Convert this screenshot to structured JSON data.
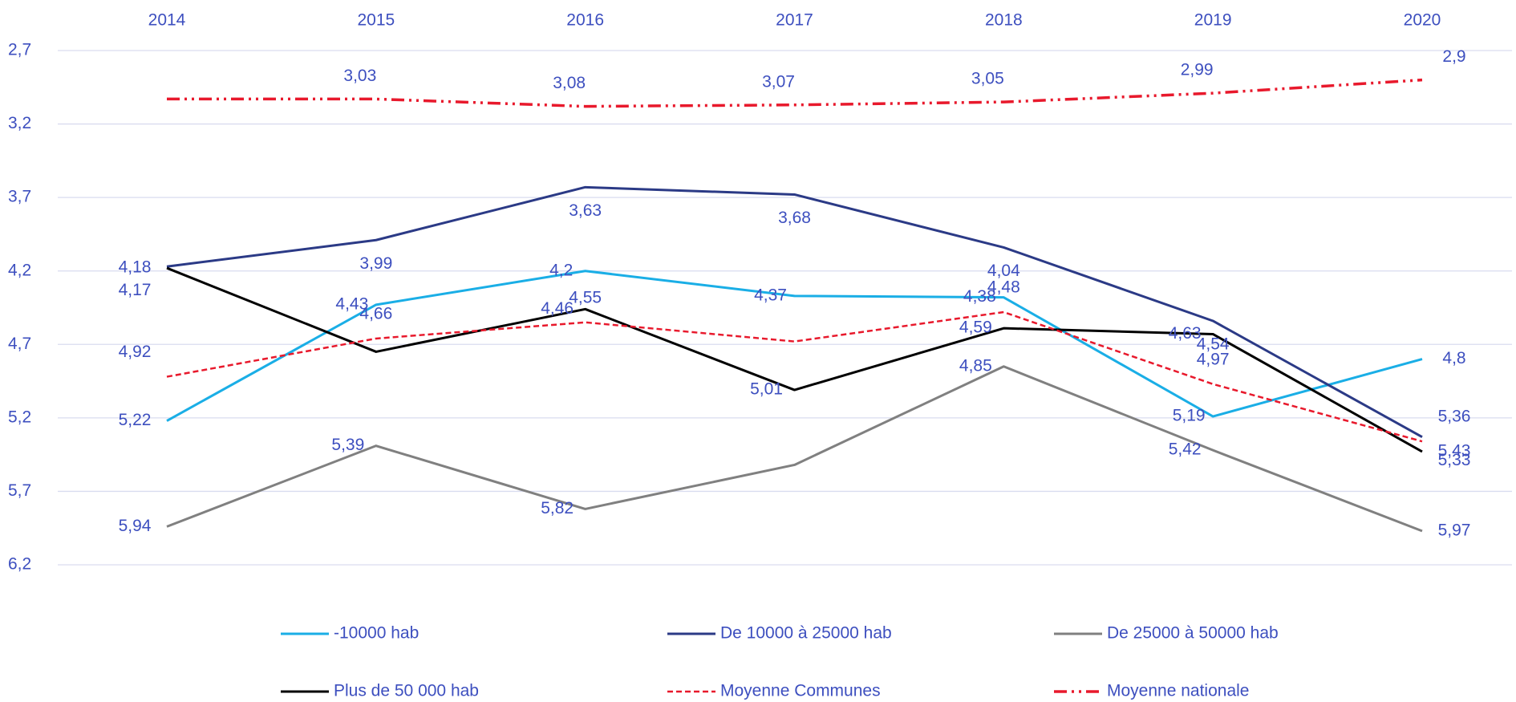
{
  "chart_data": {
    "type": "line",
    "categories": [
      "2014",
      "2015",
      "2016",
      "2017",
      "2018",
      "2019",
      "2020"
    ],
    "ylim": [
      2.7,
      6.2
    ],
    "y_reversed": true,
    "yticks": [
      {
        "value": 2.7,
        "label": "2,7"
      },
      {
        "value": 3.2,
        "label": "3,2"
      },
      {
        "value": 3.7,
        "label": "3,7"
      },
      {
        "value": 4.2,
        "label": "4,2"
      },
      {
        "value": 4.7,
        "label": "4,7"
      },
      {
        "value": 5.2,
        "label": "5,2"
      },
      {
        "value": 5.7,
        "label": "5,7"
      },
      {
        "value": 6.2,
        "label": "6,2"
      }
    ],
    "grid": true,
    "legend": "bottom",
    "series": [
      {
        "name": "-10000 hab",
        "color": "#1aaee6",
        "dash": "solid",
        "values": [
          5.22,
          4.43,
          4.2,
          4.37,
          4.38,
          5.19,
          4.8
        ],
        "value_labels": [
          "5,22",
          "4,43",
          "4,2",
          "4,37",
          "4,38",
          "5,19",
          "4,8"
        ]
      },
      {
        "name": "De 10000 à 25000 hab",
        "color": "#2b3a86",
        "dash": "solid",
        "values": [
          4.17,
          3.99,
          3.63,
          3.68,
          4.04,
          4.54,
          5.33
        ],
        "value_labels": [
          "4,17",
          "3,99",
          "3,63",
          "3,68",
          "4,04",
          "4,54",
          "5,33"
        ]
      },
      {
        "name": "De 25000 à 50000 hab",
        "color": "#808080",
        "dash": "solid",
        "values": [
          5.94,
          5.39,
          5.82,
          5.52,
          4.85,
          5.42,
          5.97
        ],
        "value_labels": [
          "5,94",
          "5,39",
          "5,82",
          null,
          "4,85",
          "5,42",
          "5,97"
        ]
      },
      {
        "name": "Plus de 50 000 hab",
        "color": "#000000",
        "dash": "solid",
        "values": [
          4.18,
          4.75,
          4.46,
          5.01,
          4.59,
          4.63,
          5.43
        ],
        "value_labels": [
          "4,18",
          null,
          "4,46",
          "5,01",
          "4,59",
          "4,63",
          "5,43"
        ]
      },
      {
        "name": "Moyenne Communes",
        "color": "#e8192c",
        "dash": "dashed",
        "values": [
          4.92,
          4.66,
          4.55,
          4.68,
          4.48,
          4.97,
          5.36
        ],
        "value_labels": [
          "4,92",
          "4,66",
          "4,55",
          null,
          "4,48",
          "4,97",
          "5,36"
        ]
      },
      {
        "name": "Moyenne nationale",
        "color": "#e8192c",
        "dash": "dashdotdot",
        "values": [
          3.03,
          3.03,
          3.08,
          3.07,
          3.05,
          2.99,
          2.9
        ],
        "value_labels": [
          null,
          "3,03",
          "3,08",
          "3,07",
          "3,05",
          "2,99",
          "2,9"
        ]
      }
    ]
  }
}
